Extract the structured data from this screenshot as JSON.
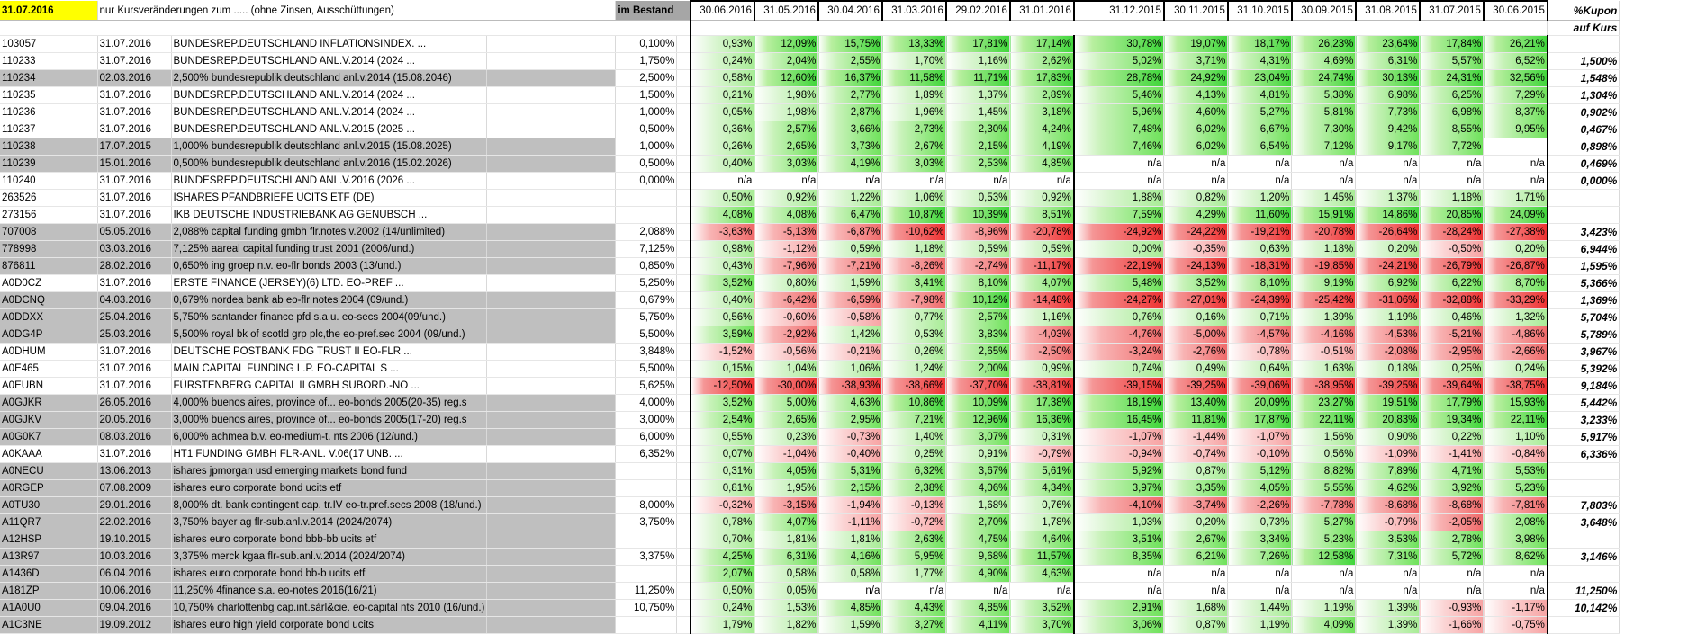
{
  "header": {
    "date": "31.07.2016",
    "note": "nur Kursveränderungen zum ..... (ohne Zinsen, Ausschüttungen)",
    "bestand": "im Bestand",
    "months": [
      "30.06.2016",
      "31.05.2016",
      "30.04.2016",
      "31.03.2016",
      "29.02.2016",
      "31.01.2016",
      "31.12.2015",
      "30.11.2015",
      "31.10.2015",
      "30.09.2015",
      "31.08.2015",
      "31.07.2015",
      "30.06.2015"
    ],
    "kupon_title": "%Kupon",
    "kupon_sub": "auf Kurs"
  },
  "rows": [
    {
      "id": "103057",
      "date": "31.07.2016",
      "name": "BUNDESREP.DEUTSCHLAND INFLATIONSINDEX. ...",
      "gray": false,
      "coupon": "0,100%",
      "vals": [
        "0,93%",
        "12,09%",
        "15,75%",
        "13,33%",
        "17,81%",
        "17,14%",
        "30,78%",
        "19,07%",
        "18,17%",
        "26,23%",
        "23,64%",
        "17,84%",
        "26,21%"
      ],
      "kupon": ""
    },
    {
      "id": "110233",
      "date": "31.07.2016",
      "name": "BUNDESREP.DEUTSCHLAND ANL.V.2014 (2024 ...",
      "gray": false,
      "coupon": "1,750%",
      "vals": [
        "0,24%",
        "2,04%",
        "2,55%",
        "1,70%",
        "1,16%",
        "2,62%",
        "5,02%",
        "3,71%",
        "4,31%",
        "4,69%",
        "6,31%",
        "5,57%",
        "6,52%"
      ],
      "kupon": "1,500%"
    },
    {
      "id": "110234",
      "date": "02.03.2016",
      "name": "2,500% bundesrepublik deutschland anl.v.2014 (15.08.2046)",
      "gray": true,
      "coupon": "2,500%",
      "vals": [
        "0,58%",
        "12,60%",
        "16,37%",
        "11,58%",
        "11,71%",
        "17,83%",
        "28,78%",
        "24,92%",
        "23,04%",
        "24,74%",
        "30,13%",
        "24,31%",
        "32,56%"
      ],
      "kupon": "1,548%"
    },
    {
      "id": "110235",
      "date": "31.07.2016",
      "name": "BUNDESREP.DEUTSCHLAND ANL.V.2014 (2024 ...",
      "gray": false,
      "coupon": "1,500%",
      "vals": [
        "0,21%",
        "1,98%",
        "2,77%",
        "1,89%",
        "1,37%",
        "2,89%",
        "5,46%",
        "4,13%",
        "4,81%",
        "5,38%",
        "6,98%",
        "6,25%",
        "7,29%"
      ],
      "kupon": "1,304%"
    },
    {
      "id": "110236",
      "date": "31.07.2016",
      "name": "BUNDESREP.DEUTSCHLAND ANL.V.2014 (2024 ...",
      "gray": false,
      "coupon": "1,000%",
      "vals": [
        "0,05%",
        "1,98%",
        "2,87%",
        "1,96%",
        "1,45%",
        "3,18%",
        "5,96%",
        "4,60%",
        "5,27%",
        "5,81%",
        "7,73%",
        "6,98%",
        "8,37%"
      ],
      "kupon": "0,902%"
    },
    {
      "id": "110237",
      "date": "31.07.2016",
      "name": "BUNDESREP.DEUTSCHLAND ANL.V.2015 (2025 ...",
      "gray": false,
      "coupon": "0,500%",
      "vals": [
        "0,36%",
        "2,57%",
        "3,66%",
        "2,73%",
        "2,30%",
        "4,24%",
        "7,48%",
        "6,02%",
        "6,67%",
        "7,30%",
        "9,42%",
        "8,55%",
        "9,95%"
      ],
      "kupon": "0,467%"
    },
    {
      "id": "110238",
      "date": "17.07.2015",
      "name": "1,000% bundesrepublik deutschland anl.v.2015 (15.08.2025)",
      "gray": true,
      "coupon": "1,000%",
      "vals": [
        "0,26%",
        "2,65%",
        "3,73%",
        "2,67%",
        "2,15%",
        "4,19%",
        "7,46%",
        "6,02%",
        "6,54%",
        "7,12%",
        "9,17%",
        "7,72%",
        ""
      ],
      "kupon": "0,898%"
    },
    {
      "id": "110239",
      "date": "15.01.2016",
      "name": "0,500% bundesrepublik deutschland anl.v.2016 (15.02.2026)",
      "gray": true,
      "coupon": "0,500%",
      "vals": [
        "0,40%",
        "3,03%",
        "4,19%",
        "3,03%",
        "2,53%",
        "4,85%",
        "n/a",
        "n/a",
        "n/a",
        "n/a",
        "n/a",
        "n/a",
        "n/a"
      ],
      "kupon": "0,469%"
    },
    {
      "id": "110240",
      "date": "31.07.2016",
      "name": "BUNDESREP.DEUTSCHLAND ANL.V.2016 (2026 ...",
      "gray": false,
      "coupon": "0,000%",
      "vals": [
        "n/a",
        "n/a",
        "n/a",
        "n/a",
        "n/a",
        "n/a",
        "n/a",
        "n/a",
        "n/a",
        "n/a",
        "n/a",
        "n/a",
        "n/a"
      ],
      "kupon": "0,000%"
    },
    {
      "id": "263526",
      "date": "31.07.2016",
      "name": "ISHARES PFANDBRIEFE UCITS ETF (DE)",
      "gray": false,
      "coupon": "",
      "vals": [
        "0,50%",
        "0,92%",
        "1,22%",
        "1,06%",
        "0,53%",
        "0,92%",
        "1,88%",
        "0,82%",
        "1,20%",
        "1,45%",
        "1,37%",
        "1,18%",
        "1,71%"
      ],
      "kupon": ""
    },
    {
      "id": "273156",
      "date": "31.07.2016",
      "name": "IKB DEUTSCHE INDUSTRIEBANK AG GENUBSCH ...",
      "gray": false,
      "coupon": "",
      "vals": [
        "4,08%",
        "4,08%",
        "6,47%",
        "10,87%",
        "10,39%",
        "8,51%",
        "7,59%",
        "4,29%",
        "11,60%",
        "15,91%",
        "14,86%",
        "20,85%",
        "24,09%"
      ],
      "kupon": ""
    },
    {
      "id": "707008",
      "date": "05.05.2016",
      "name": "2,088% capital funding gmbh flr.notes v.2002 (14/unlimited)",
      "gray": true,
      "coupon": "2,088%",
      "vals": [
        "-3,63%",
        "-5,13%",
        "-6,87%",
        "-10,62%",
        "-8,96%",
        "-20,78%",
        "-24,92%",
        "-24,22%",
        "-19,21%",
        "-20,78%",
        "-26,64%",
        "-28,24%",
        "-27,38%"
      ],
      "kupon": "3,423%"
    },
    {
      "id": "778998",
      "date": "03.03.2016",
      "name": "7,125% aareal capital funding trust 2001 (2006/und.)",
      "gray": true,
      "coupon": "7,125%",
      "vals": [
        "0,98%",
        "-1,12%",
        "0,59%",
        "1,18%",
        "0,59%",
        "0,59%",
        "0,00%",
        "-0,35%",
        "0,63%",
        "1,18%",
        "0,20%",
        "-0,50%",
        "0,20%"
      ],
      "kupon": "6,944%"
    },
    {
      "id": "876811",
      "date": "28.02.2016",
      "name": "0,650% ing groep n.v. eo-flr bonds 2003 (13/und.)",
      "gray": true,
      "coupon": "0,850%",
      "vals": [
        "0,43%",
        "-7,96%",
        "-7,21%",
        "-8,26%",
        "-2,74%",
        "-11,17%",
        "-22,19%",
        "-24,13%",
        "-18,31%",
        "-19,85%",
        "-24,21%",
        "-26,79%",
        "-26,87%"
      ],
      "kupon": "1,595%"
    },
    {
      "id": "A0D0CZ",
      "date": "31.07.2016",
      "name": "ERSTE FINANCE (JERSEY)(6) LTD. EO-PREF ...",
      "gray": false,
      "coupon": "5,250%",
      "vals": [
        "3,52%",
        "0,80%",
        "1,59%",
        "3,41%",
        "8,10%",
        "4,07%",
        "5,48%",
        "3,52%",
        "8,10%",
        "9,19%",
        "6,92%",
        "6,22%",
        "8,70%"
      ],
      "kupon": "5,366%"
    },
    {
      "id": "A0DCNQ",
      "date": "04.03.2016",
      "name": "0,679% nordea bank ab eo-flr notes 2004 (09/und.)",
      "gray": true,
      "coupon": "0,679%",
      "vals": [
        "0,40%",
        "-6,42%",
        "-6,59%",
        "-7,98%",
        "10,12%",
        "-14,48%",
        "-24,27%",
        "-27,01%",
        "-24,39%",
        "-25,42%",
        "-31,06%",
        "-32,88%",
        "-33,29%"
      ],
      "kupon": "1,369%"
    },
    {
      "id": "A0DDXX",
      "date": "25.04.2016",
      "name": "5,750% santander finance pfd s.a.u. eo-secs 2004(09/und.)",
      "gray": true,
      "coupon": "5,750%",
      "vals": [
        "0,56%",
        "-0,60%",
        "-0,58%",
        "0,77%",
        "2,57%",
        "1,16%",
        "0,76%",
        "0,16%",
        "0,71%",
        "1,39%",
        "1,19%",
        "0,46%",
        "1,32%"
      ],
      "kupon": "5,704%"
    },
    {
      "id": "A0DG4P",
      "date": "25.03.2016",
      "name": "5,500% royal bk of scotld grp plc,the eo-pref.sec 2004 (09/und.)",
      "gray": true,
      "coupon": "5,500%",
      "vals": [
        "3,59%",
        "-2,92%",
        "1,42%",
        "0,53%",
        "3,83%",
        "-4,03%",
        "-4,76%",
        "-5,00%",
        "-4,57%",
        "-4,16%",
        "-4,53%",
        "-5,21%",
        "-4,86%"
      ],
      "kupon": "5,789%"
    },
    {
      "id": "A0DHUM",
      "date": "31.07.2016",
      "name": "DEUTSCHE POSTBANK FDG TRUST II EO-FLR ...",
      "gray": false,
      "coupon": "3,848%",
      "vals": [
        "-1,52%",
        "-0,56%",
        "-0,21%",
        "0,26%",
        "2,65%",
        "-2,50%",
        "-3,24%",
        "-2,76%",
        "-0,78%",
        "-0,51%",
        "-2,08%",
        "-2,95%",
        "-2,66%"
      ],
      "kupon": "3,967%"
    },
    {
      "id": "A0E465",
      "date": "31.07.2016",
      "name": "MAIN CAPITAL FUNDING L.P. EO-CAPITAL S ...",
      "gray": false,
      "coupon": "5,500%",
      "vals": [
        "0,15%",
        "1,04%",
        "1,06%",
        "1,24%",
        "2,00%",
        "0,99%",
        "0,74%",
        "0,49%",
        "0,64%",
        "1,63%",
        "0,18%",
        "0,25%",
        "0,24%"
      ],
      "kupon": "5,392%"
    },
    {
      "id": "A0EUBN",
      "date": "31.07.2016",
      "name": "FÜRSTENBERG CAPITAL II GMBH SUBORD.-NO ...",
      "gray": false,
      "coupon": "5,625%",
      "vals": [
        "-12,50%",
        "-30,00%",
        "-38,93%",
        "-38,66%",
        "-37,70%",
        "-38,81%",
        "-39,15%",
        "-39,25%",
        "-39,06%",
        "-38,95%",
        "-39,25%",
        "-39,64%",
        "-38,75%"
      ],
      "kupon": "9,184%"
    },
    {
      "id": "A0GJKR",
      "date": "26.05.2016",
      "name": "4,000% buenos aires, province of... eo-bonds 2005(20-35) reg.s",
      "gray": true,
      "coupon": "4,000%",
      "vals": [
        "3,52%",
        "5,00%",
        "4,63%",
        "10,86%",
        "10,09%",
        "17,38%",
        "18,19%",
        "13,40%",
        "20,09%",
        "23,27%",
        "19,51%",
        "17,79%",
        "15,93%"
      ],
      "kupon": "5,442%"
    },
    {
      "id": "A0GJKV",
      "date": "20.05.2016",
      "name": "3,000% buenos aires, province of... eo-bonds 2005(17-20) reg.s",
      "gray": true,
      "coupon": "3,000%",
      "vals": [
        "2,54%",
        "2,65%",
        "2,95%",
        "7,21%",
        "12,96%",
        "16,36%",
        "16,45%",
        "11,81%",
        "17,87%",
        "22,11%",
        "20,83%",
        "19,34%",
        "22,11%"
      ],
      "kupon": "3,233%"
    },
    {
      "id": "A0G0K7",
      "date": "08.03.2016",
      "name": "6,000% achmea b.v. eo-medium-t. nts 2006 (12/und.)",
      "gray": true,
      "coupon": "6,000%",
      "vals": [
        "0,55%",
        "0,23%",
        "-0,73%",
        "1,40%",
        "3,07%",
        "0,31%",
        "-1,07%",
        "-1,44%",
        "-1,07%",
        "1,56%",
        "0,90%",
        "0,22%",
        "1,10%"
      ],
      "kupon": "5,917%"
    },
    {
      "id": "A0KAAA",
      "date": "31.07.2016",
      "name": "HT1 FUNDING GMBH FLR-ANL. V.06(17 UNB. ...",
      "gray": false,
      "coupon": "6,352%",
      "vals": [
        "0,07%",
        "-1,04%",
        "-0,40%",
        "0,25%",
        "0,91%",
        "-0,79%",
        "-0,94%",
        "-0,74%",
        "-0,10%",
        "0,56%",
        "-1,09%",
        "-1,41%",
        "-0,84%"
      ],
      "kupon": "6,336%"
    },
    {
      "id": "A0NECU",
      "date": "13.06.2013",
      "name": "ishares jpmorgan usd emerging markets bond fund",
      "gray": true,
      "coupon": "",
      "vals": [
        "0,31%",
        "4,05%",
        "5,31%",
        "6,32%",
        "3,67%",
        "5,61%",
        "5,92%",
        "0,87%",
        "5,12%",
        "8,82%",
        "7,89%",
        "4,71%",
        "5,53%"
      ],
      "kupon": ""
    },
    {
      "id": "A0RGEP",
      "date": "07.08.2009",
      "name": "ishares euro corporate bond ucits etf",
      "gray": true,
      "coupon": "",
      "vals": [
        "0,81%",
        "1,95%",
        "2,15%",
        "2,38%",
        "4,06%",
        "4,34%",
        "3,97%",
        "3,35%",
        "4,05%",
        "5,55%",
        "4,62%",
        "3,92%",
        "5,23%"
      ],
      "kupon": ""
    },
    {
      "id": "A0TU30",
      "date": "29.01.2016",
      "name": "8,000% dt. bank contingent cap. tr.IV eo-tr.pref.secs 2008 (18/und.)",
      "gray": true,
      "coupon": "8,000%",
      "vals": [
        "-0,32%",
        "-3,15%",
        "-1,94%",
        "-0,13%",
        "1,68%",
        "0,76%",
        "-4,10%",
        "-3,74%",
        "-2,26%",
        "-7,78%",
        "-8,68%",
        "-8,68%",
        "-7,81%"
      ],
      "kupon": "7,803%"
    },
    {
      "id": "A11QR7",
      "date": "22.02.2016",
      "name": "3,750% bayer ag flr-sub.anl.v.2014 (2024/2074)",
      "gray": true,
      "coupon": "3,750%",
      "vals": [
        "0,78%",
        "4,07%",
        "-1,11%",
        "-0,72%",
        "2,70%",
        "1,78%",
        "1,03%",
        "0,20%",
        "0,73%",
        "5,27%",
        "-0,79%",
        "-2,05%",
        "2,08%"
      ],
      "kupon": "3,648%"
    },
    {
      "id": "A12HSP",
      "date": "19.10.2015",
      "name": "ishares euro corporate bond bbb-bb ucits etf",
      "gray": true,
      "coupon": "",
      "vals": [
        "0,70%",
        "1,81%",
        "1,81%",
        "2,63%",
        "4,75%",
        "4,64%",
        "3,51%",
        "2,67%",
        "3,34%",
        "5,23%",
        "3,53%",
        "2,78%",
        "3,98%"
      ],
      "kupon": ""
    },
    {
      "id": "A13R97",
      "date": "10.03.2016",
      "name": "3,375% merck kgaa flr-sub.anl.v.2014 (2024/2074)",
      "gray": true,
      "coupon": "3,375%",
      "vals": [
        "4,25%",
        "6,31%",
        "4,16%",
        "5,95%",
        "9,68%",
        "11,57%",
        "8,35%",
        "6,21%",
        "7,26%",
        "12,58%",
        "7,31%",
        "5,72%",
        "8,62%"
      ],
      "kupon": "3,146%"
    },
    {
      "id": "A1436D",
      "date": "06.04.2016",
      "name": "ishares euro corporate bond bb-b ucits etf",
      "gray": true,
      "coupon": "",
      "vals": [
        "2,07%",
        "0,58%",
        "0,58%",
        "1,77%",
        "4,90%",
        "4,63%",
        "n/a",
        "n/a",
        "n/a",
        "n/a",
        "n/a",
        "n/a",
        "n/a"
      ],
      "kupon": ""
    },
    {
      "id": "A181ZP",
      "date": "10.06.2016",
      "name": "11,250% 4finance s.a. eo-notes 2016(16/21)",
      "gray": true,
      "coupon": "11,250%",
      "vals": [
        "0,50%",
        "0,05%",
        "n/a",
        "n/a",
        "n/a",
        "n/a",
        "n/a",
        "n/a",
        "n/a",
        "n/a",
        "n/a",
        "n/a",
        "n/a"
      ],
      "kupon": "11,250%"
    },
    {
      "id": "A1A0U0",
      "date": "09.04.2016",
      "name": "10,750% charlottenbg cap.int.sàrl&cie. eo-capital nts 2010 (16/und.)",
      "gray": true,
      "coupon": "10,750%",
      "vals": [
        "0,24%",
        "1,53%",
        "4,85%",
        "4,43%",
        "4,85%",
        "3,52%",
        "2,91%",
        "1,68%",
        "1,44%",
        "1,19%",
        "1,39%",
        "-0,93%",
        "-1,17%"
      ],
      "kupon": "10,142%"
    },
    {
      "id": "A1C3NE",
      "date": "19.09.2012",
      "name": "ishares euro high yield corporate bond ucits",
      "gray": true,
      "coupon": "",
      "vals": [
        "1,79%",
        "1,82%",
        "1,59%",
        "3,27%",
        "4,11%",
        "3,70%",
        "3,06%",
        "0,87%",
        "1,19%",
        "4,09%",
        "1,39%",
        "-1,66%",
        "-0,75%"
      ],
      "kupon": ""
    }
  ],
  "colors": {
    "positive": "#3fd63a",
    "negative": "#ee3131",
    "gray_row": "#bfbfbf",
    "date_cell": "#ffff00",
    "bestand_cell": "#a6a6a6"
  }
}
